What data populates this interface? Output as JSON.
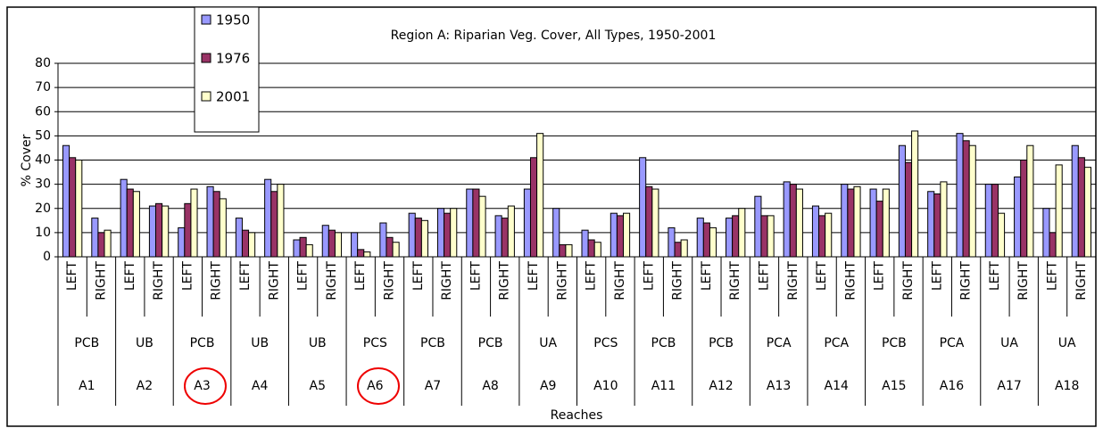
{
  "chart_data": {
    "type": "bar",
    "title": "Region A: Riparian Veg. Cover, All Types, 1950-2001",
    "y_label": "% Cover",
    "x_label": "Reaches",
    "categories": [
      "LEFT",
      "RIGHT",
      "LEFT",
      "RIGHT",
      "LEFT",
      "RIGHT",
      "LEFT",
      "RIGHT",
      "LEFT",
      "RIGHT",
      "LEFT",
      "RIGHT",
      "LEFT",
      "RIGHT",
      "LEFT",
      "RIGHT",
      "LEFT",
      "RIGHT",
      "LEFT",
      "RIGHT",
      "LEFT",
      "RIGHT",
      "LEFT",
      "RIGHT",
      "LEFT",
      "RIGHT",
      "LEFT",
      "RIGHT",
      "LEFT",
      "RIGHT",
      "LEFT",
      "RIGHT",
      "LEFT",
      "RIGHT",
      "LEFT",
      "RIGHT"
    ],
    "group_types": [
      "PCB",
      "UB",
      "PCB",
      "UB",
      "UB",
      "PCS",
      "PCB",
      "PCB",
      "UA",
      "PCS",
      "PCB",
      "PCB",
      "PCA",
      "PCA",
      "PCB",
      "PCA",
      "UA",
      "UA"
    ],
    "reaches": [
      "A1",
      "A2",
      "A3",
      "A4",
      "A5",
      "A6",
      "A7",
      "A8",
      "A9",
      "A10",
      "A11",
      "A12",
      "A13",
      "A14",
      "A15",
      "A16",
      "A17",
      "A18"
    ],
    "series": [
      {
        "name": "1950",
        "color": "#9999ff",
        "values": [
          46,
          16,
          32,
          21,
          12,
          29,
          16,
          32,
          7,
          13,
          10,
          14,
          18,
          20,
          28,
          17,
          28,
          20,
          11,
          18,
          41,
          12,
          16,
          16,
          25,
          31,
          21,
          30,
          28,
          46,
          27,
          51,
          30,
          33,
          20,
          46
        ]
      },
      {
        "name": "1976",
        "color": "#993366",
        "values": [
          41,
          10,
          28,
          22,
          22,
          27,
          11,
          27,
          8,
          11,
          3,
          8,
          16,
          18,
          28,
          16,
          41,
          5,
          7,
          17,
          29,
          6,
          14,
          17,
          17,
          30,
          17,
          28,
          23,
          39,
          26,
          48,
          30,
          40,
          10,
          41
        ]
      },
      {
        "name": "2001",
        "color": "#ffffcc",
        "values": [
          40,
          11,
          27,
          21,
          28,
          24,
          10,
          30,
          5,
          10,
          2,
          6,
          15,
          20,
          25,
          21,
          51,
          5,
          6,
          18,
          28,
          7,
          12,
          20,
          17,
          28,
          18,
          29,
          28,
          52,
          31,
          46,
          18,
          46,
          38,
          37
        ]
      }
    ],
    "ylim": [
      0,
      80
    ],
    "yticks": [
      0,
      10,
      20,
      30,
      40,
      50,
      60,
      70,
      80
    ],
    "grid": true,
    "legend": "top-left"
  }
}
